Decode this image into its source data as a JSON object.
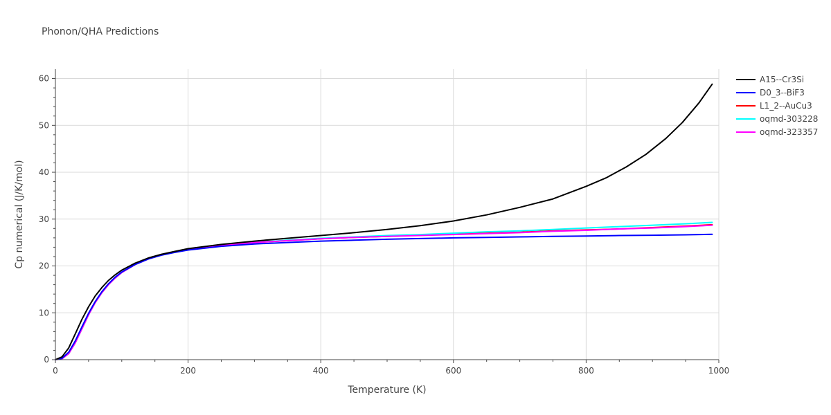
{
  "chart_data": {
    "type": "line",
    "title": "Phonon/QHA Predictions",
    "xlabel": "Temperature (K)",
    "ylabel": "Cp numerical (J/K/mol)",
    "xlim": [
      0,
      1000
    ],
    "ylim": [
      0,
      62
    ],
    "xticks": [
      0,
      200,
      400,
      600,
      800,
      1000
    ],
    "yticks": [
      0,
      10,
      20,
      30,
      40,
      50,
      60
    ],
    "grid": true,
    "legend_position": "top-right-outside",
    "series": [
      {
        "name": "A15--Cr3Si",
        "color": "#000000",
        "x": [
          0,
          10,
          20,
          30,
          40,
          50,
          60,
          70,
          80,
          90,
          100,
          120,
          140,
          160,
          180,
          200,
          250,
          300,
          350,
          400,
          450,
          500,
          550,
          600,
          650,
          700,
          750,
          800,
          830,
          860,
          890,
          920,
          945,
          970,
          990
        ],
        "y": [
          0,
          0.6,
          2.5,
          5.5,
          8.6,
          11.3,
          13.6,
          15.4,
          16.9,
          18.1,
          19.1,
          20.6,
          21.7,
          22.5,
          23.1,
          23.7,
          24.6,
          25.3,
          25.9,
          26.5,
          27.1,
          27.8,
          28.6,
          29.6,
          30.9,
          32.5,
          34.3,
          37.0,
          38.8,
          41.1,
          43.8,
          47.2,
          50.6,
          54.8,
          58.8
        ]
      },
      {
        "name": "D0_3--BiF3",
        "color": "#0000ff",
        "x": [
          0,
          10,
          20,
          30,
          40,
          50,
          60,
          70,
          80,
          90,
          100,
          120,
          140,
          160,
          180,
          200,
          250,
          300,
          350,
          400,
          450,
          500,
          550,
          600,
          650,
          700,
          750,
          800,
          850,
          900,
          950,
          990
        ],
        "y": [
          0,
          0.3,
          1.6,
          4.0,
          7.0,
          9.9,
          12.4,
          14.5,
          16.2,
          17.6,
          18.7,
          20.3,
          21.5,
          22.3,
          22.9,
          23.4,
          24.2,
          24.7,
          25.0,
          25.3,
          25.5,
          25.7,
          25.85,
          26.0,
          26.1,
          26.2,
          26.3,
          26.4,
          26.5,
          26.55,
          26.65,
          26.75
        ]
      },
      {
        "name": "L1_2--AuCu3",
        "color": "#ff0000",
        "x": [
          0,
          10,
          20,
          30,
          40,
          50,
          60,
          70,
          80,
          90,
          100,
          120,
          140,
          160,
          180,
          200,
          250,
          300,
          350,
          400,
          450,
          500,
          550,
          600,
          650,
          700,
          750,
          800,
          850,
          900,
          950,
          990
        ],
        "y": [
          0,
          0.2,
          1.3,
          3.6,
          6.6,
          9.6,
          12.2,
          14.3,
          16.0,
          17.4,
          18.6,
          20.3,
          21.5,
          22.4,
          23.0,
          23.5,
          24.4,
          25.0,
          25.4,
          25.8,
          26.1,
          26.3,
          26.6,
          26.8,
          27.0,
          27.2,
          27.5,
          27.7,
          27.9,
          28.2,
          28.5,
          28.8
        ]
      },
      {
        "name": "oqmd-303228",
        "color": "#00ffff",
        "x": [
          0,
          10,
          20,
          30,
          40,
          50,
          60,
          70,
          80,
          90,
          100,
          120,
          140,
          160,
          180,
          200,
          250,
          300,
          350,
          400,
          450,
          500,
          550,
          600,
          650,
          700,
          750,
          800,
          850,
          900,
          950,
          990
        ],
        "y": [
          0,
          0.2,
          1.3,
          3.6,
          6.6,
          9.6,
          12.2,
          14.3,
          16.0,
          17.4,
          18.6,
          20.3,
          21.5,
          22.4,
          23.0,
          23.5,
          24.4,
          25.0,
          25.5,
          25.9,
          26.2,
          26.5,
          26.7,
          27.0,
          27.3,
          27.5,
          27.8,
          28.1,
          28.4,
          28.7,
          29.0,
          29.3
        ]
      },
      {
        "name": "oqmd-323357",
        "color": "#ff00ff",
        "x": [
          0,
          10,
          20,
          30,
          40,
          50,
          60,
          70,
          80,
          90,
          100,
          120,
          140,
          160,
          180,
          200,
          250,
          300,
          350,
          400,
          450,
          500,
          550,
          600,
          650,
          700,
          750,
          800,
          850,
          900,
          950,
          990
        ],
        "y": [
          0,
          0.2,
          1.3,
          3.6,
          6.6,
          9.6,
          12.2,
          14.3,
          16.0,
          17.4,
          18.6,
          20.3,
          21.5,
          22.4,
          23.0,
          23.5,
          24.4,
          25.0,
          25.4,
          25.8,
          26.1,
          26.3,
          26.5,
          26.7,
          26.9,
          27.1,
          27.4,
          27.6,
          27.9,
          28.1,
          28.4,
          28.7
        ]
      }
    ]
  }
}
